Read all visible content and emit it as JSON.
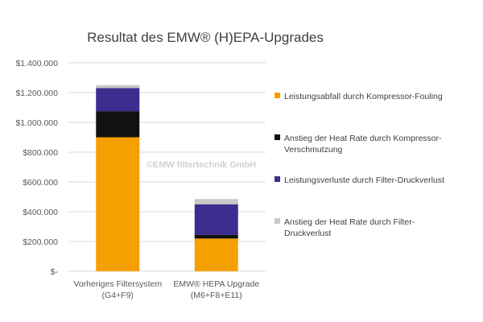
{
  "chart_data": {
    "type": "bar",
    "stacked": true,
    "title": "Resultat des EMW® (H)EPA-Upgrades",
    "categories": [
      [
        "Vorheriges Filtersystem",
        "(G4+F9)"
      ],
      [
        "EMW® HEPA Upgrade",
        "(M6+F8+E11)"
      ]
    ],
    "series": [
      {
        "name": "Leistungsabfall durch Kompressor-Fouling",
        "name_lines": [
          "Leistungsabfall durch Kompressor-Fouling"
        ],
        "color": "#f5a000",
        "values": [
          900000,
          220000
        ]
      },
      {
        "name": "Anstieg der Heat Rate durch Kompressor-Verschmutzung",
        "name_lines": [
          "Anstieg der Heat Rate durch Kompressor-",
          "Verschmutzung"
        ],
        "color": "#111111",
        "values": [
          175000,
          25000
        ]
      },
      {
        "name": "Leistungsverluste durch Filter-Druckverlust",
        "name_lines": [
          "Leistungsverluste durch Filter-Druckverlust"
        ],
        "color": "#3d2d8f",
        "values": [
          155000,
          205000
        ]
      },
      {
        "name": "Anstieg der Heat Rate durch Filter-Druckverlust",
        "name_lines": [
          "Anstieg der Heat Rate durch Filter-",
          "Druckverlust"
        ],
        "color": "#c8c8c8",
        "values": [
          20000,
          35000
        ]
      }
    ],
    "ylim": [
      0,
      1400000
    ],
    "yticks": [
      0,
      200000,
      400000,
      600000,
      800000,
      1000000,
      1200000,
      1400000
    ],
    "ytick_labels": [
      "$-",
      "$200.000",
      "$400.000",
      "$600.000",
      "$800.000",
      "$1.000.000",
      "$1.200.000",
      "$1.400.000"
    ],
    "grid": true,
    "legend_position": "right",
    "watermark": "©EMW filtertechnik GmbH"
  }
}
